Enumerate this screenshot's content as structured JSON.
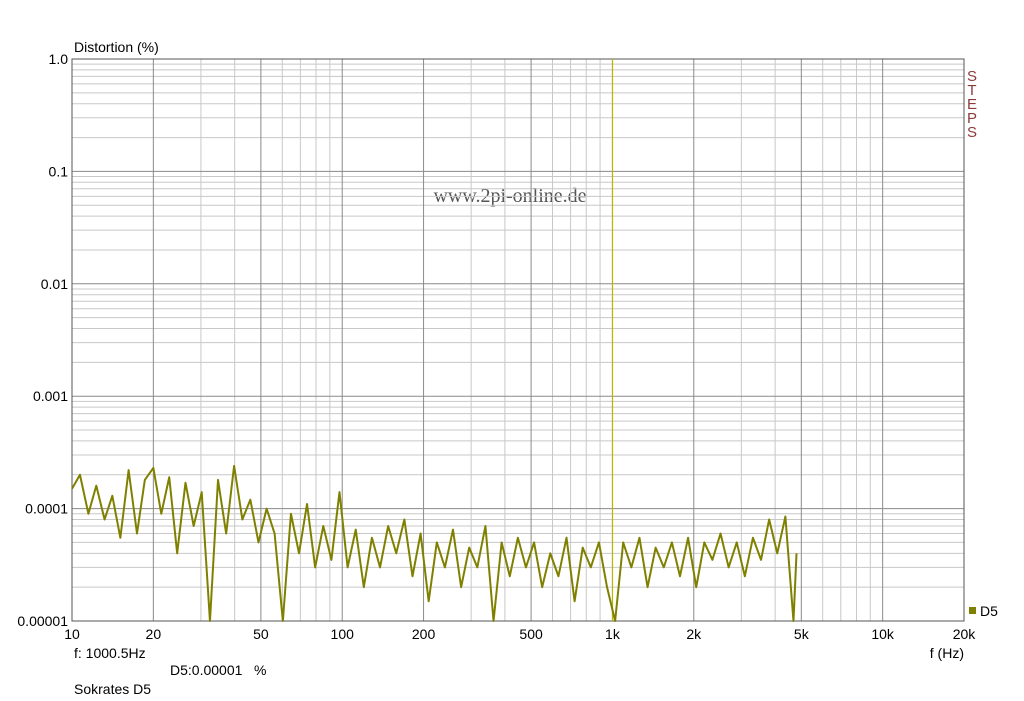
{
  "chart_data": {
    "type": "line",
    "ylabel": "Distortion (%)",
    "xlabel": "f (Hz)",
    "watermark": "www.2pi-online.de",
    "logo": "STEPS",
    "cursor": {
      "x": 1000.5,
      "label": "f: 1000.5Hz",
      "readout": "D5:0.00001   %",
      "color": "#b8b800"
    },
    "footer": "Sokrates D5",
    "xscale": "log",
    "yscale": "log",
    "grid": true,
    "xlim": [
      10,
      20000
    ],
    "ylim": [
      1e-05,
      1
    ],
    "xticks": [
      10,
      20,
      50,
      100,
      200,
      500,
      {
        "value": 1000,
        "label": "1k"
      },
      {
        "value": 2000,
        "label": "2k"
      },
      {
        "value": 5000,
        "label": "5k"
      },
      {
        "value": 10000,
        "label": "10k"
      },
      {
        "value": 20000,
        "label": "20k"
      }
    ],
    "yticks": [
      {
        "value": 1,
        "label": "1.0"
      },
      0.1,
      0.01,
      0.001,
      0.0001,
      1e-05
    ],
    "minor_xticks": [
      30,
      40,
      60,
      70,
      80,
      90,
      300,
      400,
      600,
      700,
      800,
      900,
      3000,
      4000,
      6000,
      7000,
      8000,
      9000
    ],
    "minor_yticks": [
      2e-05,
      3e-05,
      4e-05,
      5e-05,
      6e-05,
      7e-05,
      8e-05,
      9e-05,
      0.0002,
      0.0003,
      0.0004,
      0.0005,
      0.0006,
      0.0007,
      0.0008,
      0.0009,
      0.002,
      0.003,
      0.004,
      0.005,
      0.006,
      0.007,
      0.008,
      0.009,
      0.02,
      0.03,
      0.04,
      0.05,
      0.06,
      0.07,
      0.08,
      0.09,
      0.2,
      0.3,
      0.4,
      0.5,
      0.6,
      0.7,
      0.8,
      0.9
    ],
    "legend": "bottom-right",
    "x": [
      10,
      10.7,
      11.5,
      12.3,
      13.2,
      14.1,
      15.1,
      16.2,
      17.4,
      18.6,
      20,
      21.4,
      22.9,
      24.5,
      26.3,
      28.2,
      30.2,
      32.4,
      34.7,
      37.2,
      39.8,
      42.7,
      45.7,
      49,
      52.5,
      56.2,
      60.3,
      64.6,
      69.2,
      74.1,
      79.4,
      85.1,
      91.2,
      97.7,
      104.7,
      112.2,
      120.2,
      128.8,
      138,
      147.9,
      158.5,
      169.8,
      182,
      195,
      208.9,
      223.9,
      239.9,
      257,
      275.4,
      295.1,
      316.2,
      338.8,
      363.1,
      389,
      416.9,
      446.7,
      478.6,
      512.9,
      549.5,
      588.8,
      631,
      676.1,
      724.4,
      776.2,
      831.8,
      891.3,
      955,
      1023,
      1096,
      1175,
      1259,
      1349,
      1445,
      1549,
      1660,
      1778,
      1905,
      2042,
      2188,
      2344,
      2512,
      2692,
      2884,
      3090,
      3311,
      3548,
      3802,
      4074,
      4365,
      4677,
      4800
    ],
    "series": [
      {
        "name": "D5",
        "color": "#808000",
        "values": [
          0.00015,
          0.0002,
          9e-05,
          0.00016,
          8e-05,
          0.00013,
          5.5e-05,
          0.00022,
          6e-05,
          0.00018,
          0.00023,
          9e-05,
          0.00019,
          4e-05,
          0.00017,
          7e-05,
          0.00014,
          1e-05,
          0.00018,
          6e-05,
          0.00024,
          8e-05,
          0.00012,
          5e-05,
          0.0001,
          6e-05,
          1e-05,
          9e-05,
          4e-05,
          0.00011,
          3e-05,
          7e-05,
          3.5e-05,
          0.00014,
          3e-05,
          6.5e-05,
          2e-05,
          5.5e-05,
          3e-05,
          7e-05,
          4e-05,
          8e-05,
          2.5e-05,
          6e-05,
          1.5e-05,
          5e-05,
          3e-05,
          6.5e-05,
          2e-05,
          4.5e-05,
          3e-05,
          7e-05,
          1e-05,
          5e-05,
          2.5e-05,
          5.5e-05,
          3e-05,
          5e-05,
          2e-05,
          4e-05,
          2.5e-05,
          5.5e-05,
          1.5e-05,
          4.5e-05,
          3e-05,
          5e-05,
          2e-05,
          1e-05,
          5e-05,
          3e-05,
          5.5e-05,
          2e-05,
          4.5e-05,
          3e-05,
          5e-05,
          2.5e-05,
          5.5e-05,
          2e-05,
          5e-05,
          3.5e-05,
          6e-05,
          3e-05,
          5e-05,
          2.5e-05,
          5.5e-05,
          3.5e-05,
          8e-05,
          4e-05,
          8.5e-05,
          1e-05,
          4e-05
        ]
      }
    ]
  }
}
